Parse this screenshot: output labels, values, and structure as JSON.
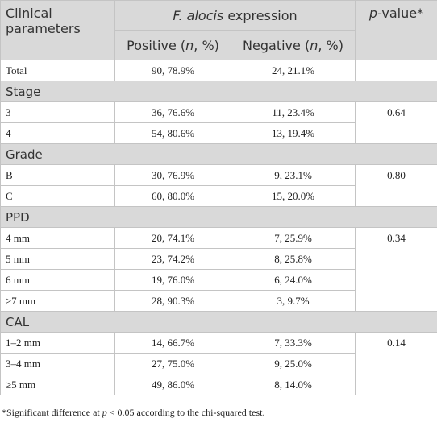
{
  "header": {
    "parameters": "Clinical parameters",
    "expression": [
      "F. alocis",
      " expression"
    ],
    "positive": [
      "Positive (",
      "n",
      ", %)"
    ],
    "negative": [
      "Negative (",
      "n",
      ", %)"
    ],
    "pvalue": [
      "p",
      "-value*"
    ]
  },
  "total": {
    "label": "Total",
    "positive": "90, 78.9%",
    "negative": "24, 21.1%"
  },
  "sections": [
    {
      "title": "Stage",
      "p": "0.64",
      "rows": [
        [
          "3",
          "36, 76.6%",
          "11, 23.4%"
        ],
        [
          "4",
          "54, 80.6%",
          "13, 19.4%"
        ]
      ]
    },
    {
      "title": "Grade",
      "p": "0.80",
      "rows": [
        [
          "B",
          "30, 76.9%",
          "9, 23.1%"
        ],
        [
          "C",
          "60, 80.0%",
          "15, 20.0%"
        ]
      ]
    },
    {
      "title": "PPD",
      "p": "0.34",
      "rows": [
        [
          "4 mm",
          "20, 74.1%",
          "7, 25.9%"
        ],
        [
          "5 mm",
          "23, 74.2%",
          "8, 25.8%"
        ],
        [
          "6 mm",
          "19, 76.0%",
          "6, 24.0%"
        ],
        [
          "≥7 mm",
          "28, 90.3%",
          "3, 9.7%"
        ]
      ]
    },
    {
      "title": "CAL",
      "p": "0.14",
      "rows": [
        [
          "1–2 mm",
          "14, 66.7%",
          "7, 33.3%"
        ],
        [
          "3–4 mm",
          "27, 75.0%",
          "9, 25.0%"
        ],
        [
          "≥5 mm",
          "49, 86.0%",
          "8, 14.0%"
        ]
      ]
    }
  ],
  "footnote": [
    "*Significant difference at ",
    "p",
    " < 0.05 according to the chi-squared test."
  ]
}
